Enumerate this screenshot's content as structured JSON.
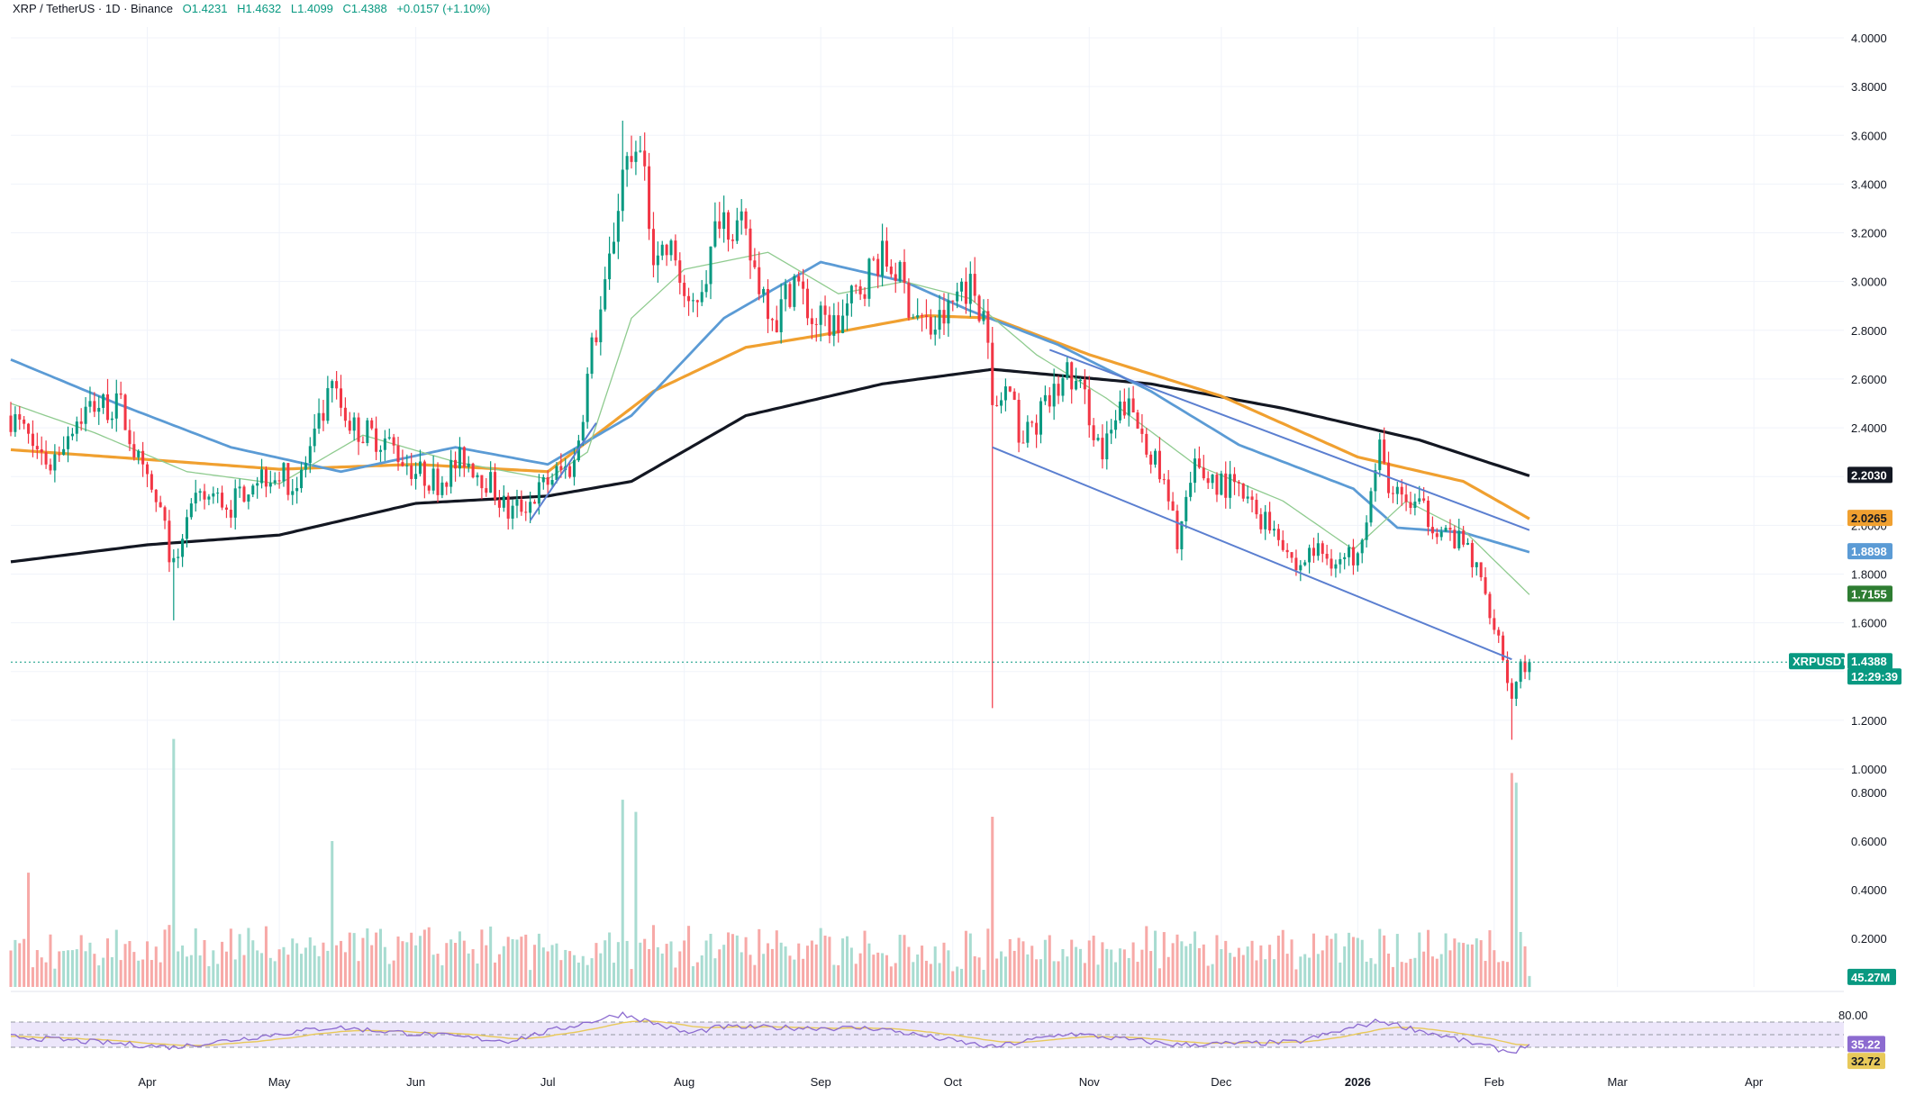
{
  "header": {
    "symbol": "XRP / TetherUS · 1D · Binance",
    "open": "O1.4231",
    "high": "H1.4632",
    "low": "L1.4099",
    "close": "C1.4388",
    "change": "+0.0157 (+1.10%)"
  },
  "colors": {
    "up": "#089981",
    "down": "#f23645",
    "ma20": "#8fcb8f",
    "ma50": "#5b9bd5",
    "ma100": "#f0a030",
    "ma200": "#131722",
    "trendline": "#5b7fd0",
    "rsi": "#8c6bd0",
    "rsi_ma": "#e8c95a"
  },
  "chart_data": {
    "type": "candlestick",
    "price_axis": {
      "range": [
        1.0,
        4.0
      ],
      "ticks": [
        "4.0000",
        "3.8000",
        "3.6000",
        "3.4000",
        "3.2000",
        "3.0000",
        "2.8000",
        "2.6000",
        "2.4000",
        "2.2000",
        "2.0000",
        "1.8000",
        "1.6000",
        "1.4000",
        "1.2000",
        "1.0000"
      ]
    },
    "volume_axis": {
      "range": [
        0,
        1.0
      ],
      "ticks": [
        "0.8000",
        "0.6000",
        "0.4000",
        "0.2000"
      ]
    },
    "rsi_axis": {
      "range": [
        20,
        80
      ],
      "ticks": [
        "80.00"
      ],
      "bands": [
        30,
        50,
        70
      ]
    },
    "time_axis": {
      "start": "2025-03-01",
      "end": "2026-04-20",
      "labels": [
        {
          "text": "Apr",
          "date": "2025-04-01"
        },
        {
          "text": "May",
          "date": "2025-05-01"
        },
        {
          "text": "Jun",
          "date": "2025-06-01"
        },
        {
          "text": "Jul",
          "date": "2025-07-01"
        },
        {
          "text": "Aug",
          "date": "2025-08-01"
        },
        {
          "text": "Sep",
          "date": "2025-09-01"
        },
        {
          "text": "Oct",
          "date": "2025-10-01"
        },
        {
          "text": "Nov",
          "date": "2025-11-01"
        },
        {
          "text": "Dec",
          "date": "2025-12-01"
        },
        {
          "text": "2026",
          "date": "2026-01-01",
          "bold": true
        },
        {
          "text": "Feb",
          "date": "2026-02-01"
        },
        {
          "text": "Mar",
          "date": "2026-03-01"
        },
        {
          "text": "Apr",
          "date": "2026-04-01"
        }
      ]
    },
    "price_path": [
      [
        "2025-03-01",
        2.45
      ],
      [
        "2025-03-05",
        2.35
      ],
      [
        "2025-03-10",
        2.25
      ],
      [
        "2025-03-15",
        2.42
      ],
      [
        "2025-03-20",
        2.5
      ],
      [
        "2025-03-26",
        2.48
      ],
      [
        "2025-03-31",
        2.2
      ],
      [
        "2025-04-04",
        2.05
      ],
      [
        "2025-04-07",
        1.82
      ],
      [
        "2025-04-10",
        2.05
      ],
      [
        "2025-04-15",
        2.12
      ],
      [
        "2025-04-20",
        2.08
      ],
      [
        "2025-04-25",
        2.2
      ],
      [
        "2025-04-30",
        2.22
      ],
      [
        "2025-05-05",
        2.16
      ],
      [
        "2025-05-10",
        2.4
      ],
      [
        "2025-05-13",
        2.55
      ],
      [
        "2025-05-18",
        2.4
      ],
      [
        "2025-05-25",
        2.35
      ],
      [
        "2025-06-01",
        2.22
      ],
      [
        "2025-06-06",
        2.18
      ],
      [
        "2025-06-12",
        2.28
      ],
      [
        "2025-06-18",
        2.17
      ],
      [
        "2025-06-22",
        2.05
      ],
      [
        "2025-06-27",
        2.1
      ],
      [
        "2025-07-02",
        2.2
      ],
      [
        "2025-07-07",
        2.25
      ],
      [
        "2025-07-11",
        2.72
      ],
      [
        "2025-07-14",
        2.95
      ],
      [
        "2025-07-18",
        3.45
      ],
      [
        "2025-07-22",
        3.5
      ],
      [
        "2025-07-25",
        3.15
      ],
      [
        "2025-07-30",
        3.1
      ],
      [
        "2025-08-02",
        2.85
      ],
      [
        "2025-08-07",
        3.1
      ],
      [
        "2025-08-09",
        3.3
      ],
      [
        "2025-08-14",
        3.2
      ],
      [
        "2025-08-18",
        3.0
      ],
      [
        "2025-08-22",
        2.85
      ],
      [
        "2025-08-26",
        3.02
      ],
      [
        "2025-08-30",
        2.84
      ],
      [
        "2025-09-05",
        2.82
      ],
      [
        "2025-09-10",
        2.98
      ],
      [
        "2025-09-14",
        3.1
      ],
      [
        "2025-09-18",
        3.05
      ],
      [
        "2025-09-22",
        2.88
      ],
      [
        "2025-09-26",
        2.8
      ],
      [
        "2025-09-30",
        2.87
      ],
      [
        "2025-10-03",
        3.0
      ],
      [
        "2025-10-06",
        2.96
      ],
      [
        "2025-10-09",
        2.82
      ],
      [
        "2025-10-10",
        2.45
      ],
      [
        "2025-10-13",
        2.55
      ],
      [
        "2025-10-17",
        2.35
      ],
      [
        "2025-10-22",
        2.48
      ],
      [
        "2025-10-27",
        2.62
      ],
      [
        "2025-10-31",
        2.52
      ],
      [
        "2025-11-04",
        2.28
      ],
      [
        "2025-11-09",
        2.5
      ],
      [
        "2025-11-14",
        2.35
      ],
      [
        "2025-11-18",
        2.15
      ],
      [
        "2025-11-21",
        1.95
      ],
      [
        "2025-11-25",
        2.22
      ],
      [
        "2025-11-30",
        2.18
      ],
      [
        "2025-12-04",
        2.15
      ],
      [
        "2025-12-09",
        2.05
      ],
      [
        "2025-12-14",
        1.98
      ],
      [
        "2025-12-18",
        1.82
      ],
      [
        "2025-12-22",
        1.9
      ],
      [
        "2025-12-28",
        1.85
      ],
      [
        "2025-12-31",
        1.88
      ],
      [
        "2026-01-03",
        2.05
      ],
      [
        "2026-01-06",
        2.3
      ],
      [
        "2026-01-09",
        2.12
      ],
      [
        "2026-01-14",
        2.08
      ],
      [
        "2026-01-18",
        2.02
      ],
      [
        "2026-01-22",
        1.95
      ],
      [
        "2026-01-26",
        1.9
      ],
      [
        "2026-01-30",
        1.72
      ],
      [
        "2026-02-02",
        1.55
      ],
      [
        "2026-02-05",
        1.28
      ],
      [
        "2026-02-07",
        1.42
      ],
      [
        "2026-02-09",
        1.438
      ]
    ],
    "wick_extremes": [
      {
        "date": "2025-07-18",
        "high": 3.66
      },
      {
        "date": "2025-10-10",
        "low": 1.25
      },
      {
        "date": "2026-02-05",
        "low": 1.12
      },
      {
        "date": "2025-04-07",
        "low": 1.61
      }
    ],
    "ma20": [
      [
        "2025-03-01",
        2.5
      ],
      [
        "2025-03-20",
        2.38
      ],
      [
        "2025-04-10",
        2.22
      ],
      [
        "2025-05-01",
        2.17
      ],
      [
        "2025-05-20",
        2.37
      ],
      [
        "2025-06-10",
        2.26
      ],
      [
        "2025-07-01",
        2.19
      ],
      [
        "2025-07-10",
        2.3
      ],
      [
        "2025-07-20",
        2.85
      ],
      [
        "2025-08-01",
        3.05
      ],
      [
        "2025-08-20",
        3.12
      ],
      [
        "2025-09-05",
        2.95
      ],
      [
        "2025-09-20",
        3.0
      ],
      [
        "2025-10-05",
        2.93
      ],
      [
        "2025-10-20",
        2.7
      ],
      [
        "2025-11-05",
        2.52
      ],
      [
        "2025-11-25",
        2.25
      ],
      [
        "2025-12-15",
        2.1
      ],
      [
        "2025-12-31",
        1.9
      ],
      [
        "2026-01-12",
        2.1
      ],
      [
        "2026-01-25",
        1.98
      ],
      [
        "2026-02-09",
        1.7155
      ]
    ],
    "ma50": [
      [
        "2025-03-01",
        2.68
      ],
      [
        "2025-03-25",
        2.5
      ],
      [
        "2025-04-20",
        2.32
      ],
      [
        "2025-05-15",
        2.22
      ],
      [
        "2025-06-10",
        2.32
      ],
      [
        "2025-07-01",
        2.25
      ],
      [
        "2025-07-20",
        2.45
      ],
      [
        "2025-08-10",
        2.85
      ],
      [
        "2025-09-01",
        3.08
      ],
      [
        "2025-09-20",
        3.0
      ],
      [
        "2025-10-05",
        2.88
      ],
      [
        "2025-10-25",
        2.74
      ],
      [
        "2025-11-15",
        2.55
      ],
      [
        "2025-12-05",
        2.33
      ],
      [
        "2025-12-31",
        2.15
      ],
      [
        "2026-01-10",
        1.99
      ],
      [
        "2026-01-25",
        1.97
      ],
      [
        "2026-02-09",
        1.8898
      ]
    ],
    "ma100": [
      [
        "2025-03-01",
        2.31
      ],
      [
        "2025-04-01",
        2.27
      ],
      [
        "2025-05-01",
        2.23
      ],
      [
        "2025-06-01",
        2.25
      ],
      [
        "2025-07-01",
        2.22
      ],
      [
        "2025-07-25",
        2.55
      ],
      [
        "2025-08-15",
        2.73
      ],
      [
        "2025-09-01",
        2.78
      ],
      [
        "2025-09-25",
        2.86
      ],
      [
        "2025-10-10",
        2.85
      ],
      [
        "2025-11-01",
        2.7
      ],
      [
        "2025-12-01",
        2.53
      ],
      [
        "2026-01-01",
        2.28
      ],
      [
        "2026-01-25",
        2.18
      ],
      [
        "2026-02-09",
        2.0265
      ]
    ],
    "ma200": [
      [
        "2025-03-01",
        1.85
      ],
      [
        "2025-04-01",
        1.92
      ],
      [
        "2025-05-01",
        1.96
      ],
      [
        "2025-06-01",
        2.09
      ],
      [
        "2025-07-01",
        2.12
      ],
      [
        "2025-07-20",
        2.18
      ],
      [
        "2025-08-15",
        2.45
      ],
      [
        "2025-09-15",
        2.58
      ],
      [
        "2025-10-10",
        2.64
      ],
      [
        "2025-11-15",
        2.58
      ],
      [
        "2025-12-15",
        2.48
      ],
      [
        "2026-01-15",
        2.35
      ],
      [
        "2026-02-09",
        2.203
      ]
    ],
    "trendlines": [
      {
        "from": [
          "2025-06-27",
          2.02
        ],
        "to": [
          "2025-07-12",
          2.42
        ]
      },
      {
        "from": [
          "2025-10-10",
          2.32
        ],
        "to": [
          "2026-02-05",
          1.45
        ]
      },
      {
        "from": [
          "2025-10-23",
          2.72
        ],
        "to": [
          "2026-02-09",
          1.98
        ]
      }
    ],
    "last_price_line": 1.4388,
    "price_badges": [
      {
        "value": "2.2030",
        "price": 2.203,
        "bg": "#131722",
        "fg": "#ffffff"
      },
      {
        "value": "2.0265",
        "price": 2.0265,
        "bg": "#f0a030",
        "fg": "#131722"
      },
      {
        "value": "1.8898",
        "price": 1.8898,
        "bg": "#5b9bd5",
        "fg": "#ffffff"
      },
      {
        "value": "1.7155",
        "price": 1.7155,
        "bg": "#2e7d32",
        "fg": "#ffffff"
      }
    ],
    "last_price_label": {
      "symbol": "XRPUSDT",
      "value": "1.4388",
      "countdown": "12:29:39"
    },
    "volume_badge": "45.27M",
    "volume_spikes": [
      {
        "date": "2025-04-07",
        "value": 1.02
      },
      {
        "date": "2025-07-18",
        "value": 0.77
      },
      {
        "date": "2025-07-21",
        "value": 0.72
      },
      {
        "date": "2025-10-10",
        "value": 0.7
      },
      {
        "date": "2026-02-05",
        "value": 0.88
      },
      {
        "date": "2026-02-06",
        "value": 0.84
      },
      {
        "date": "2025-05-13",
        "value": 0.6
      },
      {
        "date": "2025-03-05",
        "value": 0.47
      }
    ],
    "rsi_values": {
      "rsi": "35.22",
      "rsi_ma": "32.72"
    },
    "rsi_path": [
      [
        "2025-03-01",
        47
      ],
      [
        "2025-04-07",
        30
      ],
      [
        "2025-05-13",
        62
      ],
      [
        "2025-06-22",
        40
      ],
      [
        "2025-07-18",
        83
      ],
      [
        "2025-08-02",
        52
      ],
      [
        "2025-08-09",
        62
      ],
      [
        "2025-09-14",
        60
      ],
      [
        "2025-10-10",
        30
      ],
      [
        "2025-10-27",
        52
      ],
      [
        "2025-11-21",
        34
      ],
      [
        "2025-12-18",
        38
      ],
      [
        "2026-01-06",
        72
      ],
      [
        "2026-01-22",
        45
      ],
      [
        "2026-02-05",
        22
      ],
      [
        "2026-02-09",
        35.22
      ]
    ]
  }
}
